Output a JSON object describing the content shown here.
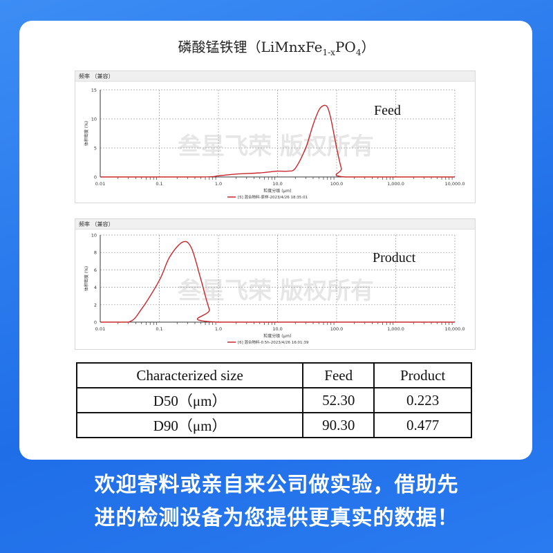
{
  "title": {
    "main": "磷酸锰铁锂（LiMnxFe",
    "sub": "1-x",
    "mid": "PO",
    "sub2": "4",
    "end": "）"
  },
  "watermark": "叁星飞荣 版权所有",
  "chart_data": [
    {
      "type": "line",
      "header": "频率 （兼容）",
      "annotation": "Feed",
      "ylabel": "体积密度 (%)",
      "xlabel": "粒度分级 (μm)",
      "xscale": "log",
      "xlim": [
        0.01,
        10000
      ],
      "ylim": [
        0,
        15
      ],
      "grid": true,
      "xticks": [
        "0.01",
        "0.1",
        "1.0",
        "10.0",
        "100.0",
        "1,000.0",
        "10,000.0"
      ],
      "yticks": [
        "0",
        "5",
        "10",
        "15"
      ],
      "series": [
        {
          "name": "[5] 混合物料-原样-2023/4/26 18:35:01",
          "color": "#c8262b",
          "x": [
            0.01,
            0.5,
            1,
            2,
            5,
            10,
            15,
            20,
            30,
            40,
            50,
            60,
            70,
            80,
            100,
            120,
            140,
            10000
          ],
          "y": [
            0,
            0,
            0.2,
            0.5,
            0.7,
            1.0,
            1.0,
            1.5,
            5,
            9,
            11.5,
            12.3,
            12,
            10,
            5,
            1.5,
            0,
            0
          ]
        }
      ]
    },
    {
      "type": "line",
      "header": "频率 （兼容）",
      "annotation": "Product",
      "ylabel": "体积密度 (%)",
      "xlabel": "粒度分级 (μm)",
      "xscale": "log",
      "xlim": [
        0.01,
        10000
      ],
      "ylim": [
        0,
        10
      ],
      "grid": true,
      "xticks": [
        "0.01",
        "0.1",
        "1.0",
        "10.0",
        "100.0",
        "1,000.0",
        "10,000.0"
      ],
      "yticks": [
        "0",
        "2",
        "4",
        "6",
        "8",
        "10"
      ],
      "series": [
        {
          "name": "[6] 混合物料-0.5h-2023/4/26 16:01:39",
          "color": "#c8262b",
          "x": [
            0.01,
            0.03,
            0.05,
            0.1,
            0.15,
            0.25,
            0.35,
            0.5,
            0.7,
            0.95,
            10000
          ],
          "y": [
            0,
            0,
            1.5,
            4.8,
            7.5,
            9.2,
            8.5,
            5,
            1.5,
            0,
            0
          ]
        }
      ]
    }
  ],
  "table": {
    "headers": [
      "Characterized size",
      "Feed",
      "Product"
    ],
    "rows": [
      [
        "D50（μm）",
        "52.30",
        "0.223"
      ],
      [
        "D90（μm）",
        "90.30",
        "0.477"
      ]
    ]
  },
  "bottom": {
    "line1": "欢迎寄料或亲自来公司做实验，借助先",
    "line2": "进的检测设备为您提供更真实的数据！"
  }
}
